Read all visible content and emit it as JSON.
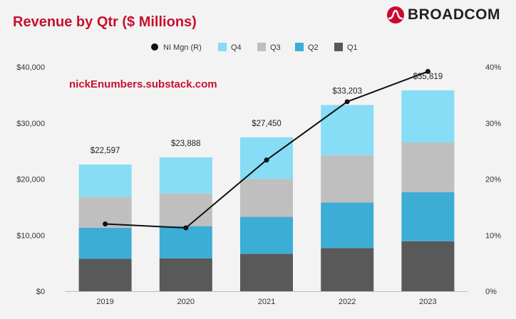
{
  "title": "Revenue by Qtr ($ Millions)",
  "brand": {
    "name": "BROADCOM",
    "color": "#cc092f"
  },
  "watermark": "nickEnumbers.substack.com",
  "chart_data": {
    "type": "bar",
    "stacked": true,
    "categories": [
      "2019",
      "2020",
      "2021",
      "2022",
      "2023"
    ],
    "series": [
      {
        "name": "Q1",
        "color": "#595959",
        "values": [
          5789,
          5861,
          6655,
          7706,
          8915
        ]
      },
      {
        "name": "Q2",
        "color": "#3cadd4",
        "values": [
          5517,
          5742,
          6610,
          8103,
          8733
        ]
      },
      {
        "name": "Q3",
        "color": "#bfbfbf",
        "values": [
          5515,
          5821,
          6778,
          8464,
          8876
        ]
      },
      {
        "name": "Q4",
        "color": "#87dcf6",
        "values": [
          5776,
          6464,
          7407,
          8930,
          9295
        ]
      }
    ],
    "totals": [
      "$22,597",
      "$23,888",
      "$27,450",
      "$33,203",
      "$35,819"
    ],
    "line_series": {
      "name": "NI Mgn (R)",
      "color": "#111111",
      "axis": "right",
      "values": [
        12.0,
        11.3,
        23.4,
        33.8,
        39.2
      ]
    },
    "legend_order": [
      "NI Mgn (R)",
      "Q4",
      "Q3",
      "Q2",
      "Q1"
    ],
    "legend_position": "top",
    "y_left": {
      "min": 0,
      "max": 40000,
      "ticks": [
        "$0",
        "$10,000",
        "$20,000",
        "$30,000",
        "$40,000"
      ]
    },
    "y_right": {
      "min": 0,
      "max": 40,
      "ticks": [
        "0%",
        "10%",
        "20%",
        "30%",
        "40%"
      ]
    },
    "grid": false
  }
}
